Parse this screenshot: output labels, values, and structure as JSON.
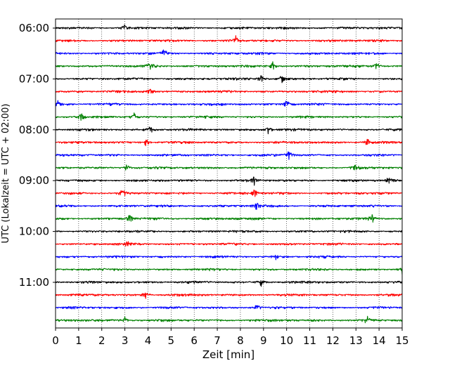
{
  "chart_data": {
    "type": "line",
    "title": "",
    "xlabel": "Zeit  [min]",
    "ylabel": "UTC (Lokalzeit = UTC + 02:00)",
    "xlim": [
      0,
      15
    ],
    "x_ticks": [
      "0",
      "1",
      "2",
      "3",
      "4",
      "5",
      "6",
      "7",
      "8",
      "9",
      "10",
      "11",
      "12",
      "13",
      "14",
      "15"
    ],
    "y_tick_labels": [
      "06:00",
      "07:00",
      "08:00",
      "09:00",
      "10:00",
      "11:00"
    ],
    "y_tick_rows": [
      0,
      4,
      8,
      12,
      16,
      20
    ],
    "row_interval_min": 15,
    "grid": {
      "vertical": "dotted",
      "horizontal": false
    },
    "colors": [
      "#000000",
      "#ff0000",
      "#0000ff",
      "#008000"
    ],
    "traces": [
      {
        "start": "06:00",
        "color": "#000000",
        "events": [
          3.0
        ]
      },
      {
        "start": "06:15",
        "color": "#ff0000",
        "events": [
          7.8
        ]
      },
      {
        "start": "06:30",
        "color": "#0000ff",
        "events": [
          4.7
        ]
      },
      {
        "start": "06:45",
        "color": "#008000",
        "events": [
          4.1,
          9.4,
          13.9
        ]
      },
      {
        "start": "07:00",
        "color": "#000000",
        "events": [
          8.9,
          9.8
        ]
      },
      {
        "start": "07:15",
        "color": "#ff0000",
        "events": [
          4.1
        ]
      },
      {
        "start": "07:30",
        "color": "#0000ff",
        "events": [
          0.1,
          10.0
        ]
      },
      {
        "start": "07:45",
        "color": "#008000",
        "events": [
          1.1,
          3.4
        ]
      },
      {
        "start": "08:00",
        "color": "#000000",
        "events": [
          4.1,
          9.2
        ]
      },
      {
        "start": "08:15",
        "color": "#ff0000",
        "events": [
          3.9,
          13.5
        ]
      },
      {
        "start": "08:30",
        "color": "#0000ff",
        "events": [
          10.1
        ]
      },
      {
        "start": "08:45",
        "color": "#008000",
        "events": [
          3.1,
          13.0
        ]
      },
      {
        "start": "09:00",
        "color": "#000000",
        "events": [
          8.6,
          14.4
        ]
      },
      {
        "start": "09:15",
        "color": "#ff0000",
        "events": [
          2.9,
          8.6
        ]
      },
      {
        "start": "09:30",
        "color": "#0000ff",
        "events": [
          8.7
        ]
      },
      {
        "start": "09:45",
        "color": "#008000",
        "events": [
          3.2,
          13.7
        ]
      },
      {
        "start": "10:00",
        "color": "#000000",
        "events": []
      },
      {
        "start": "10:15",
        "color": "#ff0000",
        "events": [
          3.1
        ]
      },
      {
        "start": "10:30",
        "color": "#0000ff",
        "events": [
          9.5
        ]
      },
      {
        "start": "10:45",
        "color": "#008000",
        "events": [
          15.0
        ]
      },
      {
        "start": "11:00",
        "color": "#000000",
        "events": [
          8.9
        ]
      },
      {
        "start": "11:15",
        "color": "#ff0000",
        "events": [
          3.9
        ]
      },
      {
        "start": "11:30",
        "color": "#0000ff",
        "events": [
          8.7
        ]
      },
      {
        "start": "11:45",
        "color": "#008000",
        "events": [
          3.0,
          13.5
        ]
      }
    ]
  }
}
